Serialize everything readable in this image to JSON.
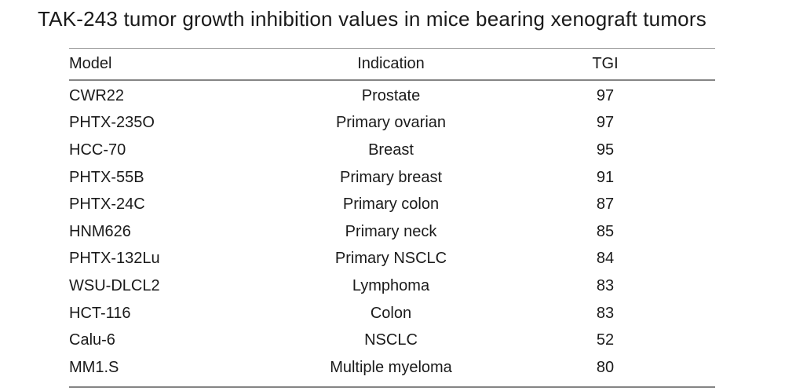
{
  "title": "TAK-243 tumor growth inhibition values in mice bearing xenograft tumors",
  "table": {
    "columns": [
      "Model",
      "Indication",
      "TGI"
    ],
    "rows": [
      {
        "model": "CWR22",
        "indication": "Prostate",
        "tgi": "97"
      },
      {
        "model": "PHTX-235O",
        "indication": "Primary ovarian",
        "tgi": "97"
      },
      {
        "model": "HCC-70",
        "indication": "Breast",
        "tgi": "95"
      },
      {
        "model": "PHTX-55B",
        "indication": "Primary breast",
        "tgi": "91"
      },
      {
        "model": "PHTX-24C",
        "indication": "Primary colon",
        "tgi": "87"
      },
      {
        "model": "HNM626",
        "indication": "Primary neck",
        "tgi": "85"
      },
      {
        "model": "PHTX-132Lu",
        "indication": "Primary NSCLC",
        "tgi": "84"
      },
      {
        "model": "WSU-DLCL2",
        "indication": "Lymphoma",
        "tgi": "83"
      },
      {
        "model": "HCT-116",
        "indication": "Colon",
        "tgi": "83"
      },
      {
        "model": "Calu-6",
        "indication": "NSCLC",
        "tgi": "52"
      },
      {
        "model": "MM1.S",
        "indication": "Multiple myeloma",
        "tgi": "80"
      }
    ]
  },
  "colors": {
    "text": "#1a1a1a",
    "rule_light": "#969696",
    "rule_dark": "#858585",
    "background": "#ffffff"
  },
  "chart_data": {
    "type": "table",
    "title": "TAK-243 tumor growth inhibition values in mice bearing xenograft tumors",
    "columns": [
      "Model",
      "Indication",
      "TGI"
    ],
    "rows": [
      [
        "CWR22",
        "Prostate",
        97
      ],
      [
        "PHTX-235O",
        "Primary ovarian",
        97
      ],
      [
        "HCC-70",
        "Breast",
        95
      ],
      [
        "PHTX-55B",
        "Primary breast",
        91
      ],
      [
        "PHTX-24C",
        "Primary colon",
        87
      ],
      [
        "HNM626",
        "Primary neck",
        85
      ],
      [
        "PHTX-132Lu",
        "Primary NSCLC",
        84
      ],
      [
        "WSU-DLCL2",
        "Lymphoma",
        83
      ],
      [
        "HCT-116",
        "Colon",
        83
      ],
      [
        "Calu-6",
        "NSCLC",
        52
      ],
      [
        "MM1.S",
        "Multiple myeloma",
        80
      ]
    ]
  }
}
